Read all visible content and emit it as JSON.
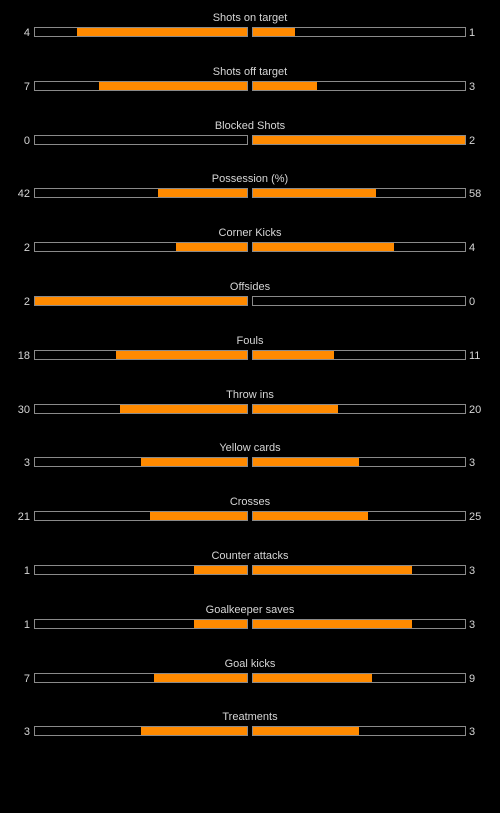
{
  "colors": {
    "background": "#000000",
    "fill": "#ff8a00",
    "bar_border": "#8a8a8a",
    "text": "#d6d6d6"
  },
  "stats": [
    {
      "label": "Shots on target",
      "home": "4",
      "away": "1",
      "home_fill": 0.8,
      "away_fill": 0.2
    },
    {
      "label": "Shots off target",
      "home": "7",
      "away": "3",
      "home_fill": 0.7,
      "away_fill": 0.3
    },
    {
      "label": "Blocked Shots",
      "home": "0",
      "away": "2",
      "home_fill": 0.0,
      "away_fill": 1.0
    },
    {
      "label": "Possession (%)",
      "home": "42",
      "away": "58",
      "home_fill": 0.42,
      "away_fill": 0.58
    },
    {
      "label": "Corner Kicks",
      "home": "2",
      "away": "4",
      "home_fill": 0.333,
      "away_fill": 0.667
    },
    {
      "label": "Offsides",
      "home": "2",
      "away": "0",
      "home_fill": 1.0,
      "away_fill": 0.0
    },
    {
      "label": "Fouls",
      "home": "18",
      "away": "11",
      "home_fill": 0.62,
      "away_fill": 0.38
    },
    {
      "label": "Throw ins",
      "home": "30",
      "away": "20",
      "home_fill": 0.6,
      "away_fill": 0.4
    },
    {
      "label": "Yellow cards",
      "home": "3",
      "away": "3",
      "home_fill": 0.5,
      "away_fill": 0.5
    },
    {
      "label": "Crosses",
      "home": "21",
      "away": "25",
      "home_fill": 0.457,
      "away_fill": 0.543
    },
    {
      "label": "Counter attacks",
      "home": "1",
      "away": "3",
      "home_fill": 0.25,
      "away_fill": 0.75
    },
    {
      "label": "Goalkeeper saves",
      "home": "1",
      "away": "3",
      "home_fill": 0.25,
      "away_fill": 0.75
    },
    {
      "label": "Goal kicks",
      "home": "7",
      "away": "9",
      "home_fill": 0.4375,
      "away_fill": 0.5625
    },
    {
      "label": "Treatments",
      "home": "3",
      "away": "3",
      "home_fill": 0.5,
      "away_fill": 0.5
    }
  ]
}
